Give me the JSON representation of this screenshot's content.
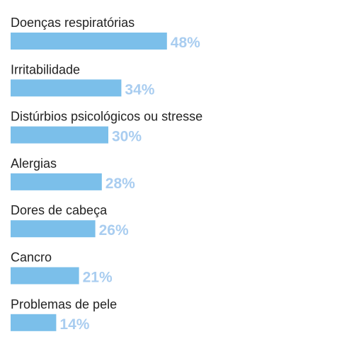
{
  "chart_data": {
    "type": "bar",
    "orientation": "horizontal",
    "categories": [
      "Doenças respiratórias",
      "Irritabilidade",
      "Distúrbios psicológicos ou stresse",
      "Alergias",
      "Dores de cabeça",
      "Cancro",
      "Problemas de pele"
    ],
    "values": [
      48,
      34,
      30,
      28,
      26,
      21,
      14
    ],
    "value_labels": [
      "48%",
      "34%",
      "30%",
      "28%",
      "26%",
      "21%",
      "14%"
    ],
    "title": "",
    "xlabel": "",
    "ylabel": "",
    "grid": false,
    "legend": "none",
    "colors": {
      "bar": "#7bbfea",
      "value_label": "#a9cdf0",
      "category_label": "#222222"
    }
  }
}
